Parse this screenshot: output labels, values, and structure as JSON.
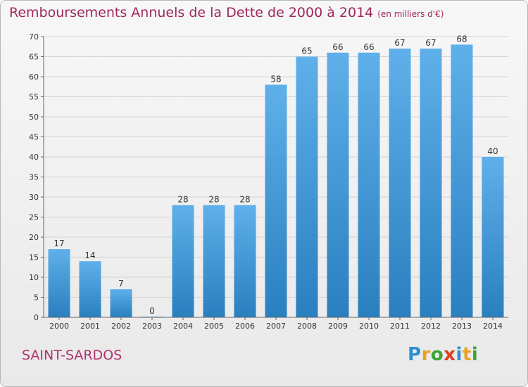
{
  "header": {
    "title": "Remboursements Annuels de la Dette de 2000 à 2014",
    "unit": "(en milliers d'€)"
  },
  "commune": "SAINT-SARDOS",
  "logo": {
    "text": "Proxiti",
    "letters": [
      {
        "ch": "P",
        "color": "#2e8fce"
      },
      {
        "ch": "r",
        "color": "#e8a21c"
      },
      {
        "ch": "o",
        "color": "#3aa535"
      },
      {
        "ch": "x",
        "color": "#e03c1e"
      },
      {
        "ch": "i",
        "color": "#2e8fce"
      },
      {
        "ch": "t",
        "color": "#e8a21c"
      },
      {
        "ch": "i",
        "color": "#3aa535"
      }
    ]
  },
  "colors": {
    "bar_top": "#5fb0ea",
    "bar_bottom": "#2a7fbf",
    "title": "#a0275c"
  },
  "chart_data": {
    "type": "bar",
    "title": "Remboursements Annuels de la Dette de 2000 à 2014",
    "subtitle": "(en milliers d'€)",
    "xlabel": "",
    "ylabel": "",
    "categories": [
      "2000",
      "2001",
      "2002",
      "2003",
      "2004",
      "2005",
      "2006",
      "2007",
      "2008",
      "2009",
      "2010",
      "2011",
      "2012",
      "2013",
      "2014"
    ],
    "values": [
      17,
      14,
      7,
      0,
      28,
      28,
      28,
      58,
      65,
      66,
      66,
      67,
      67,
      68,
      40
    ],
    "ylim": [
      0,
      70
    ],
    "yticks": [
      0,
      5,
      10,
      15,
      20,
      25,
      30,
      35,
      40,
      45,
      50,
      55,
      60,
      65,
      70
    ],
    "grid": true,
    "data_labels": true
  }
}
